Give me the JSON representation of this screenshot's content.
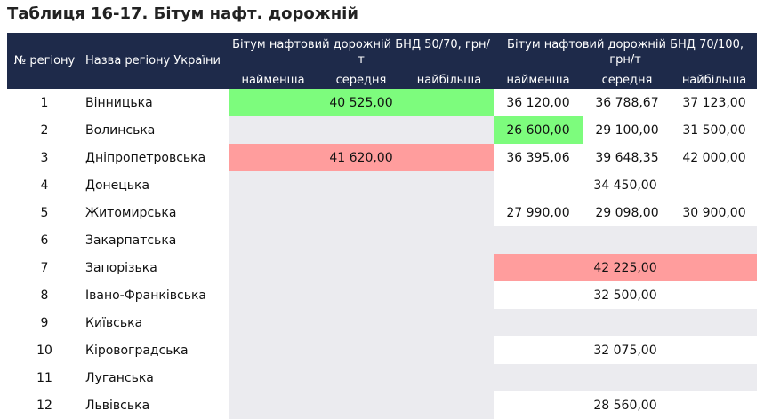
{
  "header": {
    "title": "Таблиця 16-17. Бітум нафт. дорожній"
  },
  "table": {
    "columns": {
      "number": "№ регіону",
      "region": "Назва регіону України"
    },
    "groups": [
      {
        "title": "Бітум нафтовий дорожній БНД 50/70, грн/т",
        "sub": [
          "найменша",
          "середня",
          "найбільша"
        ]
      },
      {
        "title": "Бітум нафтовий дорожній БНД 70/100, грн/т",
        "sub": [
          "найменша",
          "середня",
          "найбільша"
        ]
      }
    ],
    "rows": [
      {
        "number": "1",
        "region": "Вінницька",
        "cells": [
          [
            {
              "text": "40 525,00",
              "color": "#7dfc7d"
            }
          ],
          [
            {
              "text": "36 120,00"
            },
            {
              "text": "36 788,67"
            },
            {
              "text": "37 123,00"
            }
          ]
        ]
      },
      {
        "number": "2",
        "region": "Волинська",
        "cells": [
          [],
          [
            {
              "text": "26 600,00",
              "color": "#7dfc7d"
            },
            {
              "text": "29 100,00"
            },
            {
              "text": "31 500,00"
            }
          ]
        ]
      },
      {
        "number": "3",
        "region": "Дніпропетровська",
        "cells": [
          [
            {
              "text": "41 620,00",
              "color": "#ff9d9d"
            }
          ],
          [
            {
              "text": "36 395,06"
            },
            {
              "text": "39 648,35"
            },
            {
              "text": "42 000,00"
            }
          ]
        ]
      },
      {
        "number": "4",
        "region": "Донецька",
        "cells": [
          [],
          [
            {
              "text": "34 450,00"
            }
          ]
        ]
      },
      {
        "number": "5",
        "region": "Житомирська",
        "cells": [
          [],
          [
            {
              "text": "27 990,00"
            },
            {
              "text": "29 098,00"
            },
            {
              "text": "30 900,00"
            }
          ]
        ]
      },
      {
        "number": "6",
        "region": "Закарпатська",
        "cells": [
          [],
          []
        ]
      },
      {
        "number": "7",
        "region": "Запорізька",
        "cells": [
          [],
          [
            {
              "text": "42 225,00",
              "color": "#ff9d9d"
            }
          ]
        ]
      },
      {
        "number": "8",
        "region": "Івано-Франківська",
        "cells": [
          [],
          [
            {
              "text": "32 500,00"
            }
          ]
        ]
      },
      {
        "number": "9",
        "region": "Київська",
        "cells": [
          [],
          []
        ]
      },
      {
        "number": "10",
        "region": "Кіровоградська",
        "cells": [
          [],
          [
            {
              "text": "32 075,00"
            }
          ]
        ]
      },
      {
        "number": "11",
        "region": "Луганська",
        "cells": [
          [],
          []
        ]
      },
      {
        "number": "12",
        "region": "Львівська",
        "cells": [
          [],
          [
            {
              "text": "28 560,00"
            }
          ]
        ]
      }
    ]
  }
}
